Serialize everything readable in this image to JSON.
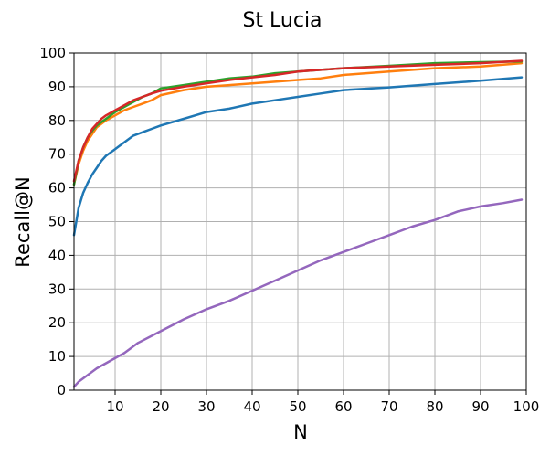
{
  "chart_data": {
    "type": "line",
    "title": "St Lucia",
    "xlabel": "N",
    "ylabel": "Recall@N",
    "xlim": [
      1,
      100
    ],
    "ylim": [
      0,
      100
    ],
    "xticks": [
      10,
      20,
      30,
      40,
      50,
      60,
      70,
      80,
      90,
      100
    ],
    "yticks": [
      0,
      10,
      20,
      30,
      40,
      50,
      60,
      70,
      80,
      90,
      100
    ],
    "grid": true,
    "legend": "none",
    "series": [
      {
        "color": "#1f77b4",
        "x": [
          1,
          2,
          3,
          4,
          5,
          6,
          7,
          8,
          10,
          12,
          14,
          16,
          18,
          20,
          25,
          30,
          35,
          40,
          45,
          50,
          55,
          60,
          70,
          80,
          90,
          99
        ],
        "y": [
          46,
          54,
          58.5,
          61.5,
          64,
          66,
          68,
          69.5,
          71.5,
          73.5,
          75.5,
          76.5,
          77.5,
          78.5,
          80.5,
          82.5,
          83.5,
          85,
          86,
          87,
          88,
          89,
          89.8,
          90.8,
          91.8,
          92.8
        ]
      },
      {
        "color": "#ff7f0e",
        "x": [
          1,
          2,
          3,
          4,
          5,
          6,
          7,
          8,
          10,
          12,
          14,
          16,
          18,
          20,
          25,
          30,
          35,
          40,
          45,
          50,
          55,
          60,
          70,
          80,
          90,
          99
        ],
        "y": [
          61,
          67,
          71,
          74,
          76,
          78,
          79,
          80,
          81.5,
          83,
          84,
          85,
          86,
          87.5,
          89,
          90,
          90.5,
          91,
          91.5,
          92,
          92.5,
          93.5,
          94.5,
          95.5,
          96,
          97
        ]
      },
      {
        "color": "#2ca02c",
        "x": [
          1,
          2,
          3,
          4,
          5,
          6,
          7,
          8,
          10,
          12,
          14,
          16,
          18,
          20,
          25,
          30,
          35,
          40,
          45,
          50,
          55,
          60,
          70,
          80,
          90,
          99
        ],
        "y": [
          61,
          68,
          72,
          75,
          77,
          78.5,
          79.5,
          80.5,
          82.5,
          84,
          85.5,
          87,
          88,
          89.5,
          90.5,
          91.5,
          92.5,
          93,
          94,
          94.5,
          95,
          95.5,
          96.2,
          97,
          97.3,
          97.5
        ]
      },
      {
        "color": "#d62728",
        "x": [
          1,
          2,
          3,
          4,
          5,
          6,
          7,
          8,
          10,
          12,
          14,
          16,
          18,
          20,
          25,
          30,
          35,
          40,
          45,
          50,
          55,
          60,
          70,
          80,
          90,
          99
        ],
        "y": [
          62,
          68,
          72,
          75,
          77.5,
          79,
          80.5,
          81.5,
          83,
          84.5,
          86,
          87,
          88,
          88.8,
          90,
          91,
          92,
          92.8,
          93.5,
          94.5,
          95,
          95.5,
          96,
          96.5,
          97,
          97.7
        ]
      },
      {
        "color": "#9467bd",
        "x": [
          1,
          2,
          4,
          6,
          8,
          10,
          12,
          15,
          20,
          25,
          30,
          35,
          40,
          45,
          50,
          55,
          60,
          65,
          70,
          75,
          80,
          85,
          90,
          95,
          99
        ],
        "y": [
          1,
          2.5,
          4.5,
          6.5,
          8,
          9.5,
          11,
          14,
          17.5,
          21,
          24,
          26.5,
          29.5,
          32.5,
          35.5,
          38.5,
          41,
          43.5,
          46,
          48.5,
          50.5,
          53,
          54.5,
          55.5,
          56.5
        ]
      }
    ]
  }
}
